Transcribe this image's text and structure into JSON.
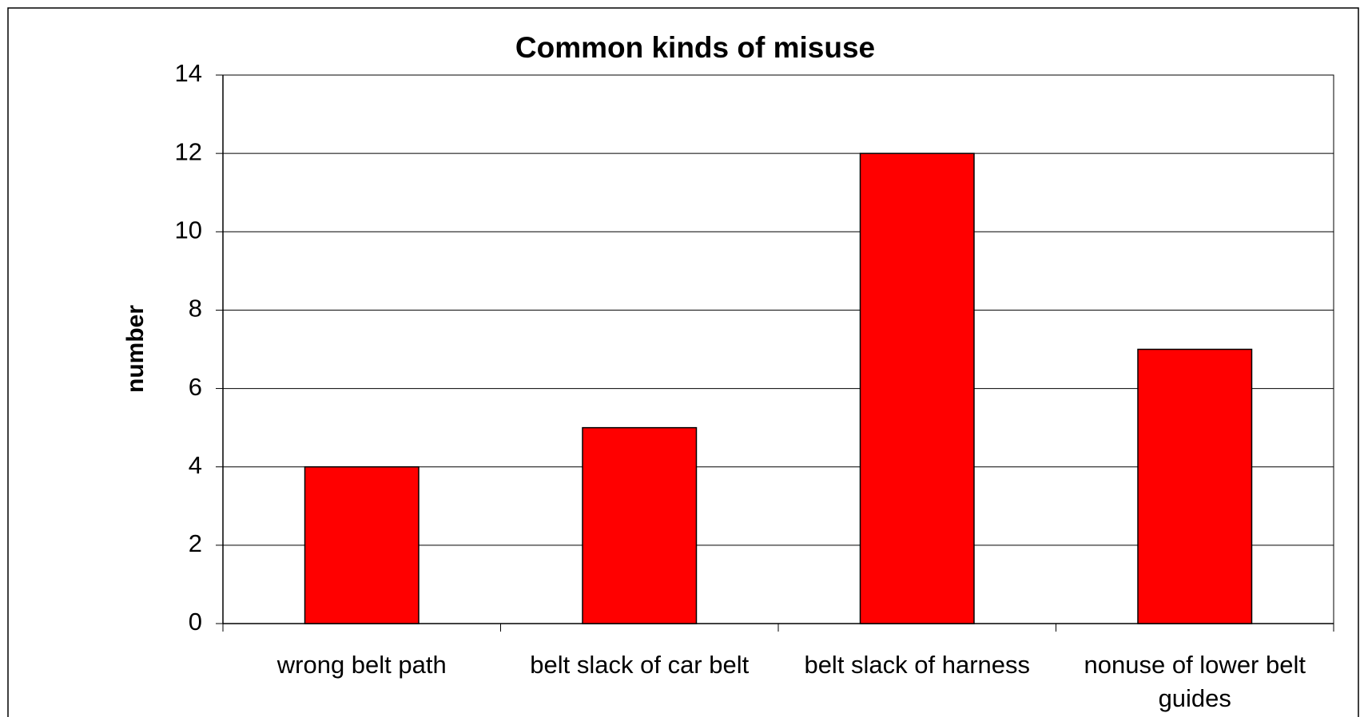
{
  "chart_data": {
    "type": "bar",
    "title": "Common kinds of misuse",
    "y_label": "number",
    "categories": [
      "wrong belt path",
      "belt slack of car belt",
      "belt slack of harness",
      "nonuse of lower belt guides"
    ],
    "values": [
      4,
      5,
      12,
      7
    ],
    "color": "#ff0000",
    "ylim": [
      0,
      14
    ],
    "yticks": [
      0,
      2,
      4,
      6,
      8,
      10,
      12,
      14
    ],
    "grid": true
  }
}
